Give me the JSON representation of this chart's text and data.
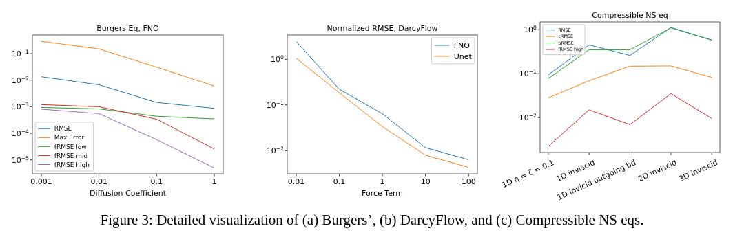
{
  "chart_data": [
    {
      "type": "line",
      "title": "Burgers Eq, FNO",
      "xlabel": "Diffusion Coefficient",
      "log": "xy",
      "x": [
        0.001,
        0.01,
        0.1,
        1
      ],
      "xlim": [
        0.0007,
        1.43
      ],
      "xticks": [
        0.001,
        0.01,
        0.1,
        1
      ],
      "ylim": [
        3e-06,
        0.5
      ],
      "yticks": [
        {
          "value": 0.1,
          "label": "10$^{−1}$"
        },
        {
          "value": 0.01,
          "label": "10$^{−2}$"
        },
        {
          "value": 0.001,
          "label": "10$^{−3}$"
        },
        {
          "value": 0.0001,
          "label": "10$^{−4}$"
        },
        {
          "value": 1e-05,
          "label": "10$^{−5}$"
        }
      ],
      "legend": "bottom left",
      "grid": false,
      "series": [
        {
          "name": "RMSE",
          "color": "#1f77b4",
          "values": [
            0.0135,
            0.0067,
            0.00145,
            0.00087
          ]
        },
        {
          "name": "Max Error",
          "color": "#ff7f0e",
          "values": [
            0.29,
            0.15,
            0.031,
            0.006
          ]
        },
        {
          "name": "fRMSE low",
          "color": "#2ca02c",
          "values": [
            0.00094,
            0.00083,
            0.00044,
            0.00035
          ]
        },
        {
          "name": "fRMSE mid",
          "color": "#d62728",
          "values": [
            0.0012,
            0.001,
            0.00034,
            2.6e-05
          ]
        },
        {
          "name": "fRMSE high",
          "color": "#9467bd",
          "values": [
            0.00081,
            0.00055,
            5.8e-05,
            5e-06
          ]
        }
      ]
    },
    {
      "type": "line",
      "title": "Normalized RMSE, DarcyFlow",
      "xlabel": "Force Term",
      "log": "xy",
      "x": [
        0.01,
        0.1,
        1,
        10,
        100
      ],
      "xlim": [
        0.0062,
        160
      ],
      "xticks": [
        0.01,
        0.1,
        1,
        10,
        100
      ],
      "ylim": [
        0.0031,
        3.4
      ],
      "yticks": [
        {
          "value": 1,
          "label": "10$^{0}$"
        },
        {
          "value": 0.1,
          "label": "10$^{−1}$"
        },
        {
          "value": 0.01,
          "label": "10$^{−2}$"
        }
      ],
      "legend": "top right",
      "grid": false,
      "annotations": [
        "Figure 3: Detailed visualization of (a) Burgers’, (b) DarcyFlow, and (c) Compressible NS eqs."
      ],
      "series": [
        {
          "name": "FNO",
          "color": "#1f77b4",
          "values": [
            2.45,
            0.22,
            0.064,
            0.0116,
            0.0063
          ]
        },
        {
          "name": "Unet",
          "color": "#ff7f0e",
          "values": [
            1.06,
            0.184,
            0.0335,
            0.0079,
            0.0043
          ]
        }
      ]
    },
    {
      "type": "line",
      "title": "Compressible NS eq",
      "log": "y",
      "categories": [
        "1D η = ζ = 0.1",
        "1D inviscid",
        "1D invicid outgoing bd",
        "2D inviscid",
        "3D inviscid"
      ],
      "ylim": [
        0.0016,
        1.5
      ],
      "yticks": [
        {
          "value": 1,
          "label": "10$^{0}$"
        },
        {
          "value": 0.1,
          "label": "10$^{−1}$"
        },
        {
          "value": 0.01,
          "label": "10$^{−2}$"
        }
      ],
      "legend": "top left",
      "grid": false,
      "series": [
        {
          "name": "RMSE",
          "color": "#1f77b4",
          "values": [
            0.093,
            0.45,
            0.26,
            1.12,
            0.58
          ]
        },
        {
          "name": "cRMSE",
          "color": "#ff7f0e",
          "values": [
            0.028,
            0.069,
            0.148,
            0.15,
            0.082
          ]
        },
        {
          "name": "bRMSE",
          "color": "#2ca02c",
          "values": [
            0.077,
            0.35,
            0.35,
            1.1,
            0.58
          ]
        },
        {
          "name": "fRMSE high",
          "color": "#d62728",
          "values": [
            0.0022,
            0.015,
            0.0069,
            0.035,
            0.0095
          ]
        }
      ]
    }
  ]
}
